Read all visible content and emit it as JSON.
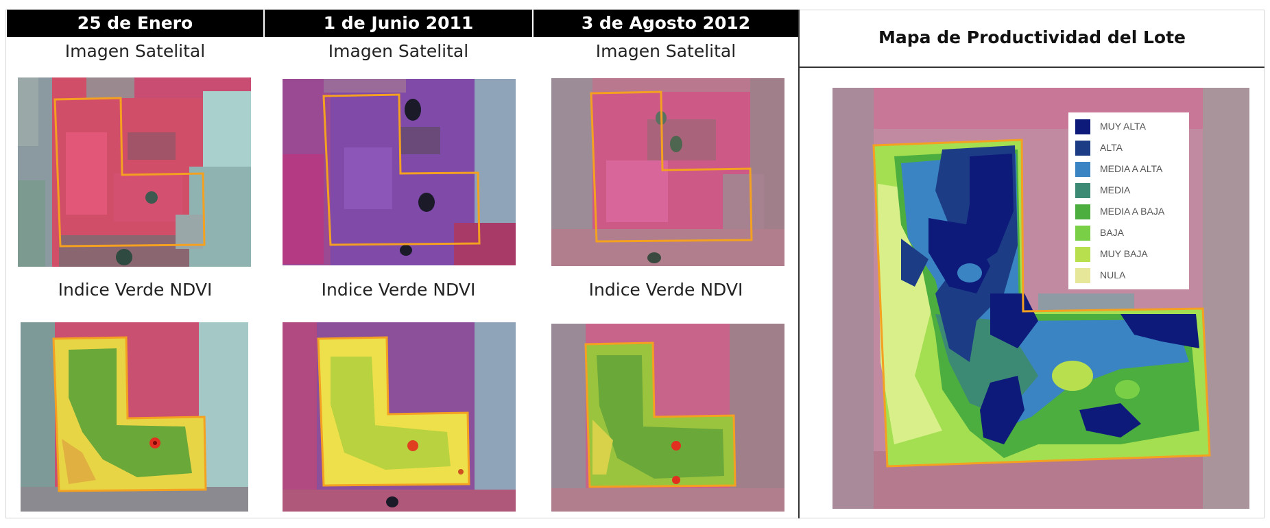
{
  "columns": [
    {
      "date": "25 de Enero",
      "satellite_label": "Imagen  Satelital",
      "ndvi_label": "Indice Verde NDVI"
    },
    {
      "date": "1 de Junio 2011",
      "satellite_label": "Imagen  Satelital",
      "ndvi_label": "Indice Verde NDVI"
    },
    {
      "date": "3 de Agosto 2012",
      "satellite_label": "Imagen  Satelital",
      "ndvi_label": "Indice Verde NDVI"
    }
  ],
  "map": {
    "title": "Mapa de Productividad del Lote",
    "legend": [
      {
        "label": "MUY ALTA",
        "color": "#0d1a7a"
      },
      {
        "label": "ALTA",
        "color": "#1c3d86"
      },
      {
        "label": "MEDIA A ALTA",
        "color": "#3a84c4"
      },
      {
        "label": "MEDIA",
        "color": "#3d8a74"
      },
      {
        "label": "MEDIA A BAJA",
        "color": "#4cae3e"
      },
      {
        "label": "BAJA",
        "color": "#79d046"
      },
      {
        "label": "MUY BAJA",
        "color": "#b7df4e"
      },
      {
        "label": "NULA",
        "color": "#e7e79a"
      }
    ]
  }
}
